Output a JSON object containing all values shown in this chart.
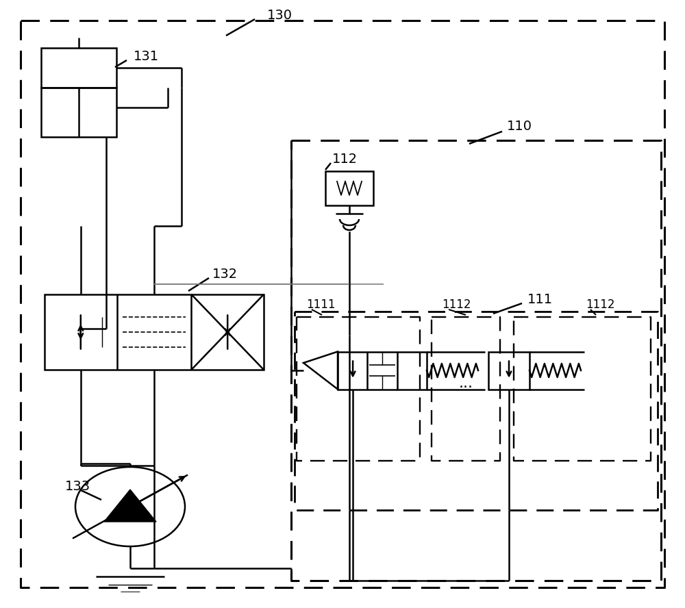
{
  "bg_color": "#ffffff",
  "line_color": "#000000",
  "lw": 1.8,
  "fig_w": 10.0,
  "fig_h": 8.88,
  "dpi": 100
}
